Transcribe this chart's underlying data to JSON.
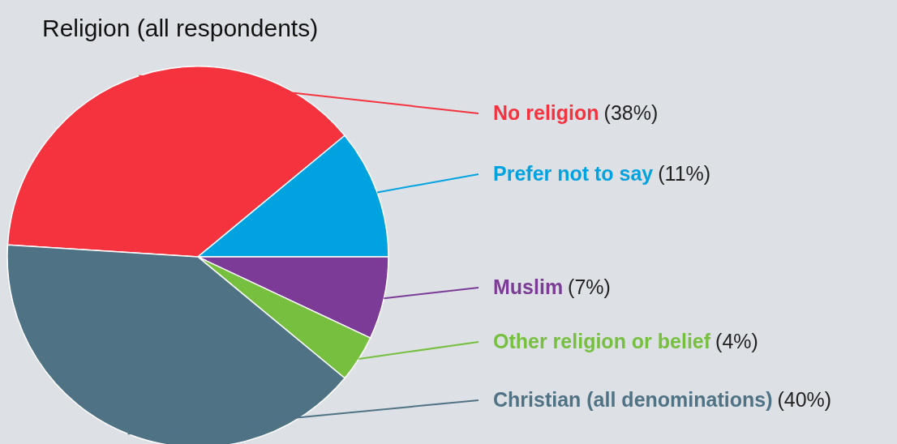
{
  "chart_data": {
    "type": "pie",
    "title": "Religion (all respondents)",
    "categories": [
      "No religion",
      "Prefer not to say",
      "Muslim",
      "Other religion or belief",
      "Christian (all denominations)"
    ],
    "values": [
      38,
      11,
      7,
      4,
      40
    ],
    "value_labels": [
      "(38%)",
      "(11%)",
      "(7%)",
      "(4%)",
      "(40%)"
    ],
    "colors": [
      "#f5333f",
      "#00a3e0",
      "#7b3b96",
      "#76bf3f",
      "#4f7285"
    ]
  }
}
